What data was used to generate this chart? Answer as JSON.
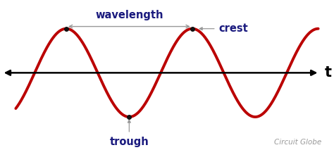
{
  "bg_color": "#ffffff",
  "wave_color": "#bb0000",
  "wave_linewidth": 2.8,
  "axis_color": "#000000",
  "text_color": "#1a1a7e",
  "annotation_color": "#999999",
  "dot_color": "#111111",
  "amplitude": 1.0,
  "period": 2.0,
  "x_wave_start": -0.3,
  "x_wave_end": 4.5,
  "xlabel_text": "t",
  "wavelength_label": "wavelength",
  "crest_label": "crest",
  "trough_label": "trough",
  "watermark": "Circuit Globe",
  "watermark_color": "#999999",
  "watermark_fontsize": 7.5,
  "label_fontsize": 10.5,
  "t_fontsize": 15,
  "crest1_x": 0.5,
  "crest2_x": 2.5,
  "trough_x": 1.5,
  "xlim": [
    -0.55,
    4.75
  ],
  "ylim": [
    -1.75,
    1.65
  ]
}
